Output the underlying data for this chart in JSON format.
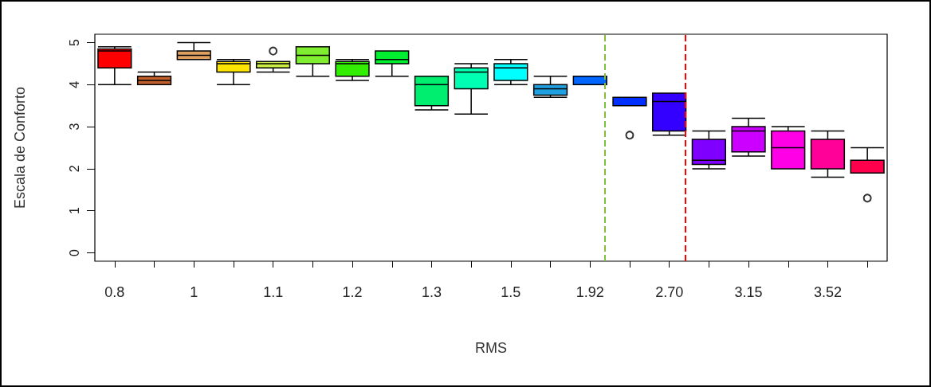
{
  "chart_data": {
    "type": "box",
    "xlabel": "RMS",
    "ylabel": "Escala de Conforto",
    "categories": [
      "0.8",
      null,
      "1",
      null,
      "1.1",
      null,
      "1.2",
      null,
      "1.3",
      null,
      "1.5",
      null,
      "1.92",
      null,
      "2.70",
      null,
      "3.15",
      null,
      "3.52",
      null
    ],
    "boxes": [
      {
        "low": 4.0,
        "q1": 4.4,
        "median": 4.8,
        "q3": 4.85,
        "high": 4.9
      },
      {
        "low": 4.0,
        "q1": 4.0,
        "median": 4.1,
        "q3": 4.2,
        "high": 4.3
      },
      {
        "low": 4.6,
        "q1": 4.6,
        "median": 4.7,
        "q3": 4.8,
        "high": 5.0
      },
      {
        "low": 4.0,
        "q1": 4.3,
        "median": 4.5,
        "q3": 4.55,
        "high": 4.6
      },
      {
        "low": 4.3,
        "q1": 4.4,
        "median": 4.5,
        "q3": 4.55,
        "high": 4.55,
        "outliers": [
          4.8
        ]
      },
      {
        "low": 4.2,
        "q1": 4.5,
        "median": 4.7,
        "q3": 4.9,
        "high": 4.9
      },
      {
        "low": 4.1,
        "q1": 4.2,
        "median": 4.5,
        "q3": 4.55,
        "high": 4.6
      },
      {
        "low": 4.2,
        "q1": 4.5,
        "median": 4.6,
        "q3": 4.8,
        "high": 4.8
      },
      {
        "low": 3.4,
        "q1": 3.5,
        "median": 4.0,
        "q3": 4.2,
        "high": 4.2
      },
      {
        "low": 3.3,
        "q1": 3.9,
        "median": 4.3,
        "q3": 4.4,
        "high": 4.5
      },
      {
        "low": 4.0,
        "q1": 4.1,
        "median": 4.4,
        "q3": 4.5,
        "high": 4.6
      },
      {
        "low": 3.7,
        "q1": 3.75,
        "median": 3.9,
        "q3": 4.0,
        "high": 4.2
      },
      {
        "low": 4.0,
        "q1": 4.0,
        "median": 4.0,
        "q3": 4.2,
        "high": 4.2
      },
      {
        "low": 3.5,
        "q1": 3.5,
        "median": 3.5,
        "q3": 3.7,
        "high": 3.7,
        "outliers": [
          2.8
        ]
      },
      {
        "low": 2.8,
        "q1": 2.9,
        "median": 3.6,
        "q3": 3.8,
        "high": 3.8
      },
      {
        "low": 2.0,
        "q1": 2.1,
        "median": 2.2,
        "q3": 2.7,
        "high": 2.9
      },
      {
        "low": 2.3,
        "q1": 2.4,
        "median": 2.9,
        "q3": 3.0,
        "high": 3.2
      },
      {
        "low": 2.0,
        "q1": 2.0,
        "median": 2.5,
        "q3": 2.9,
        "high": 3.0
      },
      {
        "low": 1.8,
        "q1": 2.0,
        "median": 2.0,
        "q3": 2.7,
        "high": 2.9
      },
      {
        "low": 1.9,
        "q1": 1.9,
        "median": 1.9,
        "q3": 2.2,
        "high": 2.5,
        "outliers": [
          1.3
        ]
      }
    ],
    "colors": [
      "#ff0000",
      "#c0602c",
      "#e0a060",
      "#ffe500",
      "#ccee44",
      "#80ee30",
      "#33ee00",
      "#00ee30",
      "#00ee70",
      "#00ffb2",
      "#00ffff",
      "#20a0e0",
      "#0066ff",
      "#0030ff",
      "#3300ff",
      "#8000ff",
      "#cc00ff",
      "#ff00e6",
      "#ff0099",
      "#ff004d"
    ],
    "ylim": [
      -0.2,
      5.2
    ],
    "yticks": [
      0,
      1,
      2,
      3,
      4,
      5
    ],
    "grid": false
  }
}
